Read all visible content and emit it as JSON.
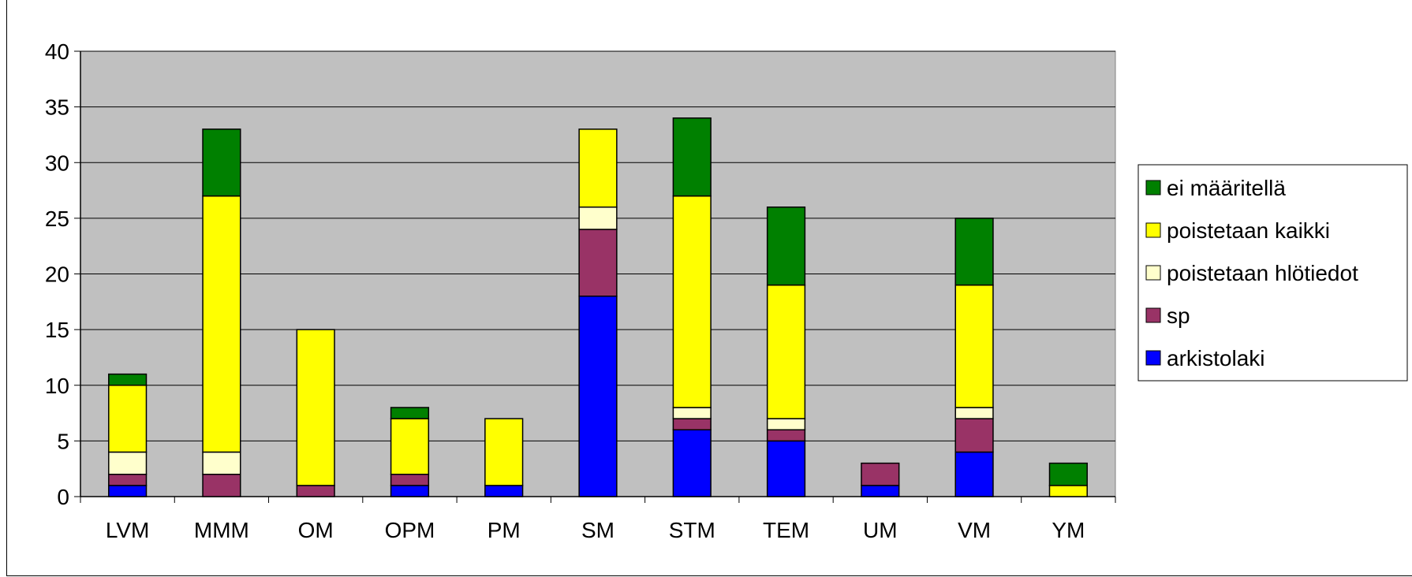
{
  "chart_data": {
    "type": "bar",
    "stacked": true,
    "categories": [
      "LVM",
      "MMM",
      "OM",
      "OPM",
      "PM",
      "SM",
      "STM",
      "TEM",
      "UM",
      "VM",
      "YM"
    ],
    "series": [
      {
        "name": "arkistolaki",
        "color": "#0000ff",
        "values": [
          1,
          0,
          0,
          1,
          1,
          18,
          6,
          5,
          1,
          4,
          0
        ]
      },
      {
        "name": "sp",
        "color": "#993366",
        "values": [
          1,
          2,
          1,
          1,
          0,
          6,
          1,
          1,
          2,
          3,
          0
        ]
      },
      {
        "name": "poistetaan hlötiedot",
        "color": "#ffffcc",
        "values": [
          2,
          2,
          0,
          0,
          0,
          2,
          1,
          1,
          0,
          1,
          0
        ]
      },
      {
        "name": "poistetaan kaikki",
        "color": "#ffff00",
        "values": [
          6,
          23,
          14,
          5,
          6,
          7,
          19,
          12,
          0,
          11,
          1
        ]
      },
      {
        "name": "ei määritellä",
        "color": "#008000",
        "values": [
          1,
          6,
          0,
          1,
          0,
          0,
          7,
          7,
          0,
          6,
          2
        ]
      }
    ],
    "yticks": [
      "0",
      "5",
      "10",
      "15",
      "20",
      "25",
      "30",
      "35",
      "40"
    ],
    "ylim": [
      0,
      40
    ],
    "grid": true,
    "plot_background": "#c0c0c0",
    "legend_position": "right",
    "legend_order": [
      "ei määritellä",
      "poistetaan kaikki",
      "poistetaan hlötiedot",
      "sp",
      "arkistolaki"
    ]
  }
}
